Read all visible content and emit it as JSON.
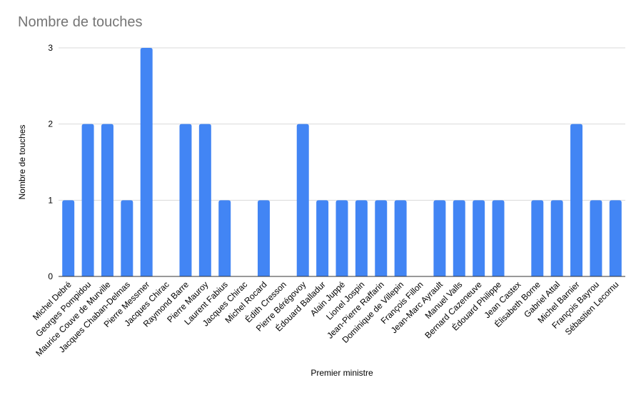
{
  "chart_data": {
    "type": "bar",
    "title": "Nombre de touches",
    "xlabel": "Premier ministre",
    "ylabel": "Nombre de touches",
    "ylim": [
      0,
      3
    ],
    "yticks": [
      "0",
      "1",
      "2",
      "3"
    ],
    "grid": true,
    "legend": "none",
    "bar_color": "#4285f4",
    "categories": [
      "Michel Debré",
      "Georges Pompidou",
      "Maurice Couve de Murville",
      "Jacques Chaban-Delmas",
      "Pierre Messmer",
      "Jacques Chirac",
      "Raymond Barre",
      "Pierre Mauroy",
      "Laurent Fabius",
      "Jacques Chirac",
      "Michel Rocard",
      "Édith Cresson",
      "Pierre Bérégovoy",
      "Édouard Balladur",
      "Alain Juppé",
      "Lionel Jospin",
      "Jean-Pierre Raffarin",
      "Dominique de Villepin",
      "François Fillon",
      "Jean-Marc Ayrault",
      "Manuel Valls",
      "Bernard Cazeneuve",
      "Édouard Philippe",
      "Jean Castex",
      "Élisabeth Borne",
      "Gabriel Attal",
      "Michel Barnier",
      "François Bayrou",
      "Sébastien Lecornu"
    ],
    "values": [
      1,
      2,
      2,
      1,
      3,
      0,
      2,
      2,
      1,
      0,
      1,
      0,
      2,
      1,
      1,
      1,
      1,
      1,
      0,
      1,
      1,
      1,
      1,
      0,
      1,
      1,
      2,
      1,
      1
    ]
  }
}
